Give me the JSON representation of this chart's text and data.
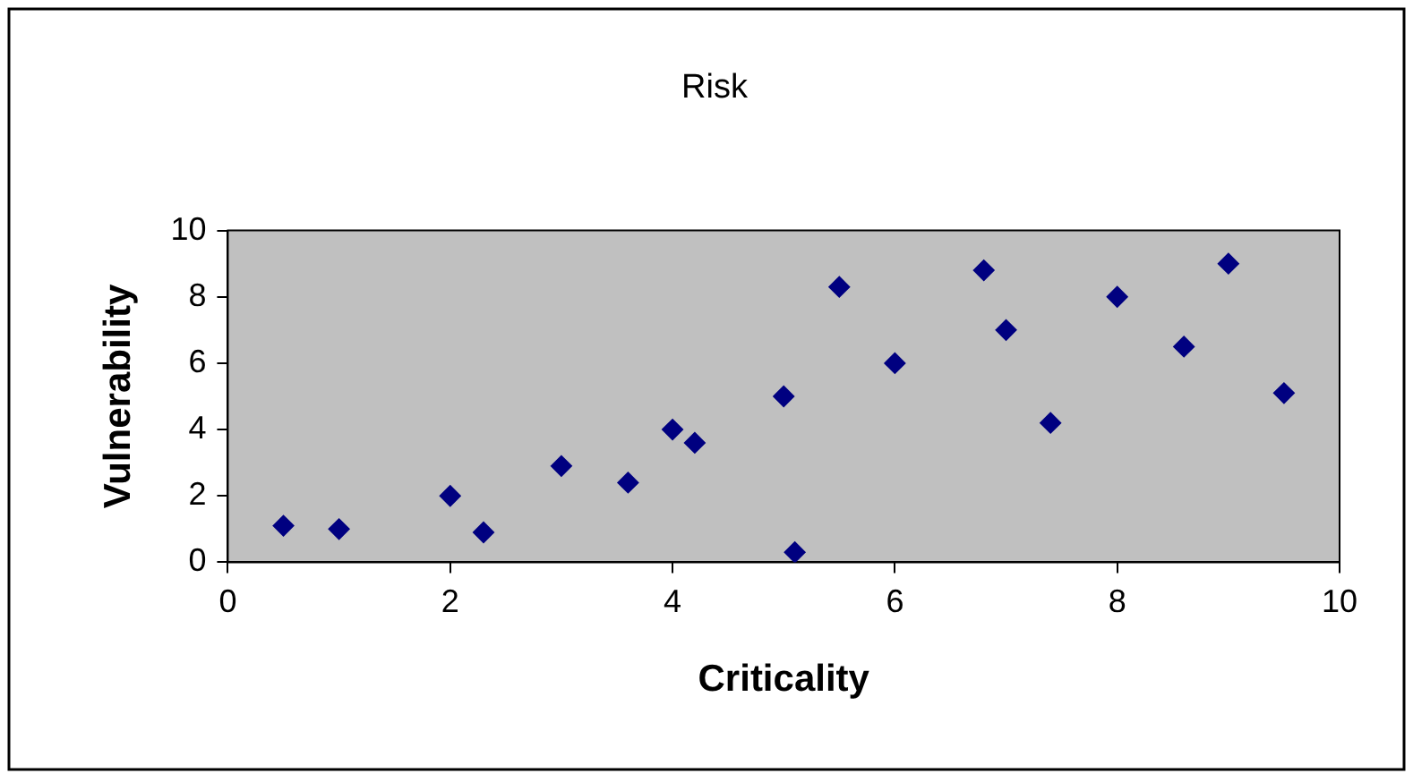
{
  "chart_data": {
    "type": "scatter",
    "title": "Risk",
    "xlabel": "Criticality",
    "ylabel": "Vulnerability",
    "x": [
      0.5,
      1,
      2,
      2.3,
      3,
      3.6,
      4,
      4.2,
      5,
      5.1,
      5.5,
      6,
      6.8,
      7,
      7.4,
      8,
      8.6,
      9,
      9.5
    ],
    "series": [
      {
        "color": "#000080",
        "values": [
          1.1,
          1,
          2,
          0.9,
          2.9,
          2.4,
          4,
          3.6,
          5,
          0.3,
          8.3,
          6,
          8.8,
          7,
          4.2,
          8,
          6.5,
          9,
          5.1
        ]
      }
    ],
    "xlim": [
      0,
      10
    ],
    "xticks": [
      0,
      2,
      4,
      6,
      8,
      10
    ],
    "ylim": [
      0,
      10
    ],
    "yticks": [
      0,
      2,
      4,
      6,
      8,
      10
    ],
    "grid": false,
    "legend": false,
    "marker": "diamond"
  }
}
